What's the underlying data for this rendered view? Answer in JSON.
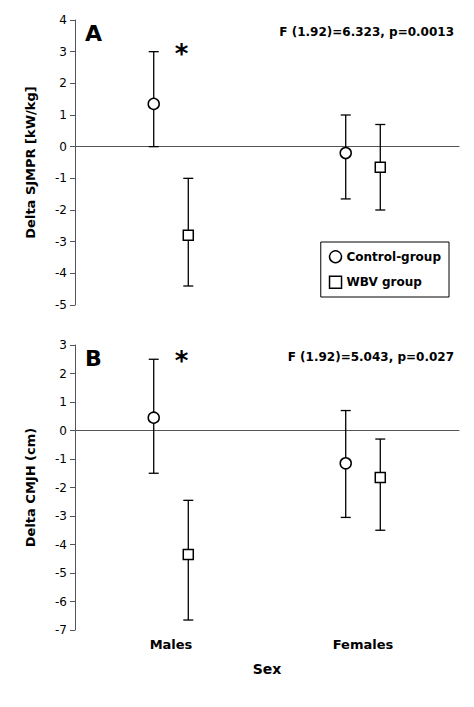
{
  "chart_data": [
    {
      "type": "scatter",
      "title": "A",
      "categories": [
        null,
        null
      ],
      "ylabel": "Delta SJMPR [kW/kg]",
      "ylim": [
        -5,
        4
      ],
      "yticks": [
        -5,
        -4,
        -3,
        -2,
        -1,
        0,
        1,
        2,
        3,
        4
      ],
      "grid": false,
      "legend": "lower right",
      "series": [
        {
          "name": "Control-group",
          "marker": "circle",
          "color": "#000000",
          "values": [
            1.35,
            -0.2
          ],
          "err_up": [
            1.65,
            1.2
          ],
          "err_down": [
            1.35,
            1.45
          ]
        },
        {
          "name": "WBV group",
          "marker": "square",
          "color": "#000000",
          "values": [
            -2.8,
            -0.65
          ],
          "err_up": [
            1.8,
            1.35
          ],
          "err_down": [
            1.6,
            1.35
          ]
        }
      ],
      "annotations": [
        {
          "text": "F (1.92)=6.323, p=0.0013"
        },
        {
          "text": "*",
          "series": "Control-group",
          "category_index": 0
        }
      ]
    },
    {
      "type": "scatter",
      "title": "B",
      "categories": [
        "Males",
        "Females"
      ],
      "xlabel": "Sex",
      "ylabel": "Delta CMJH (cm)",
      "ylim": [
        -7,
        3
      ],
      "yticks": [
        -7,
        -6,
        -5,
        -4,
        -3,
        -2,
        -1,
        0,
        1,
        2,
        3
      ],
      "grid": false,
      "series": [
        {
          "name": "Control-group",
          "marker": "circle",
          "color": "#000000",
          "values": [
            0.45,
            -1.15
          ],
          "err_up": [
            2.05,
            1.85
          ],
          "err_down": [
            1.95,
            1.9
          ]
        },
        {
          "name": "WBV group",
          "marker": "square",
          "color": "#000000",
          "values": [
            -4.35,
            -1.65
          ],
          "err_up": [
            1.9,
            1.35
          ],
          "err_down": [
            2.3,
            1.85
          ]
        }
      ],
      "annotations": [
        {
          "text": "F (1.92)=5.043, p=0.027"
        },
        {
          "text": "*",
          "series": "Control-group",
          "category_index": 0
        }
      ]
    }
  ]
}
